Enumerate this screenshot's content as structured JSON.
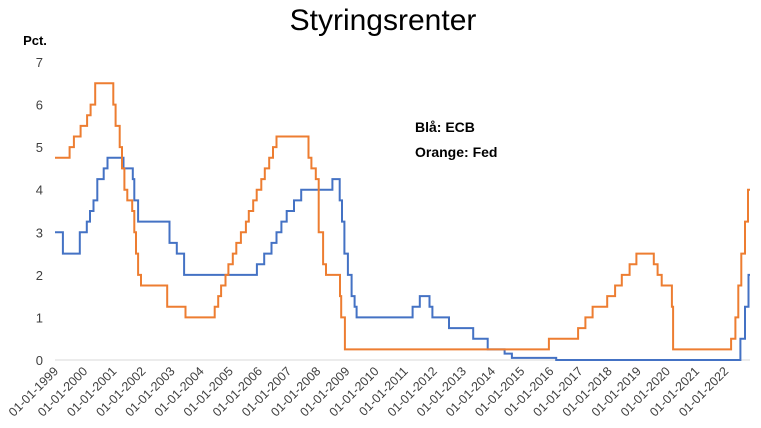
{
  "chart_data": {
    "type": "line",
    "title": "Styringsrenter",
    "ylabel": "Pct.",
    "xlabel": "",
    "ylim": [
      0,
      7
    ],
    "yticks": [
      0,
      1,
      2,
      3,
      4,
      5,
      6,
      7
    ],
    "grid": false,
    "xlim": [
      1999.0,
      2022.85
    ],
    "categories": [
      "01-01-1999",
      "01-01-2000",
      "01-01-2001",
      "01-01-2002",
      "01-01-2003",
      "01-01-2004",
      "01-01-2005",
      "01-01-2006",
      "01-01-2007",
      "01-01-2008",
      "01-01-2009",
      "01-01-2010",
      "01-01-2011",
      "01-01-2012",
      "01-01-2013",
      "01-01-2014",
      "01-01-2015",
      "01-01-2016",
      "01-01-2017",
      "01-01-2018",
      "01-01-2019",
      "01-01-2020",
      "01-01-2021",
      "01-01-2022"
    ],
    "legend": [
      "Blå: ECB",
      "Orange: Fed"
    ],
    "legend_position": "top-center",
    "series": [
      {
        "name": "ECB",
        "color": "#4472c4",
        "points": [
          [
            1999.0,
            3.0
          ],
          [
            1999.27,
            3.0
          ],
          [
            1999.27,
            2.5
          ],
          [
            1999.85,
            2.5
          ],
          [
            1999.85,
            3.0
          ],
          [
            2000.09,
            3.0
          ],
          [
            2000.09,
            3.25
          ],
          [
            2000.2,
            3.25
          ],
          [
            2000.2,
            3.5
          ],
          [
            2000.32,
            3.5
          ],
          [
            2000.32,
            3.75
          ],
          [
            2000.45,
            3.75
          ],
          [
            2000.45,
            4.25
          ],
          [
            2000.67,
            4.25
          ],
          [
            2000.67,
            4.5
          ],
          [
            2000.8,
            4.5
          ],
          [
            2000.8,
            4.75
          ],
          [
            2001.35,
            4.75
          ],
          [
            2001.35,
            4.5
          ],
          [
            2001.67,
            4.5
          ],
          [
            2001.67,
            4.25
          ],
          [
            2001.72,
            4.25
          ],
          [
            2001.72,
            3.75
          ],
          [
            2001.85,
            3.75
          ],
          [
            2001.85,
            3.25
          ],
          [
            2002.93,
            3.25
          ],
          [
            2002.93,
            2.75
          ],
          [
            2003.18,
            2.75
          ],
          [
            2003.18,
            2.5
          ],
          [
            2003.43,
            2.5
          ],
          [
            2003.43,
            2.0
          ],
          [
            2005.93,
            2.0
          ],
          [
            2005.93,
            2.25
          ],
          [
            2006.18,
            2.25
          ],
          [
            2006.18,
            2.5
          ],
          [
            2006.43,
            2.5
          ],
          [
            2006.43,
            2.75
          ],
          [
            2006.6,
            2.75
          ],
          [
            2006.6,
            3.0
          ],
          [
            2006.77,
            3.0
          ],
          [
            2006.77,
            3.25
          ],
          [
            2006.95,
            3.25
          ],
          [
            2006.95,
            3.5
          ],
          [
            2007.2,
            3.5
          ],
          [
            2007.2,
            3.75
          ],
          [
            2007.45,
            3.75
          ],
          [
            2007.45,
            4.0
          ],
          [
            2008.52,
            4.0
          ],
          [
            2008.52,
            4.25
          ],
          [
            2008.77,
            4.25
          ],
          [
            2008.77,
            3.75
          ],
          [
            2008.85,
            3.75
          ],
          [
            2008.85,
            3.25
          ],
          [
            2008.93,
            3.25
          ],
          [
            2008.93,
            2.5
          ],
          [
            2009.05,
            2.5
          ],
          [
            2009.05,
            2.0
          ],
          [
            2009.18,
            2.0
          ],
          [
            2009.18,
            1.5
          ],
          [
            2009.28,
            1.5
          ],
          [
            2009.28,
            1.25
          ],
          [
            2009.35,
            1.25
          ],
          [
            2009.35,
            1.0
          ],
          [
            2011.27,
            1.0
          ],
          [
            2011.27,
            1.25
          ],
          [
            2011.52,
            1.25
          ],
          [
            2011.52,
            1.5
          ],
          [
            2011.85,
            1.5
          ],
          [
            2011.85,
            1.25
          ],
          [
            2011.95,
            1.25
          ],
          [
            2011.95,
            1.0
          ],
          [
            2012.52,
            1.0
          ],
          [
            2012.52,
            0.75
          ],
          [
            2013.35,
            0.75
          ],
          [
            2013.35,
            0.5
          ],
          [
            2013.85,
            0.5
          ],
          [
            2013.85,
            0.25
          ],
          [
            2014.43,
            0.25
          ],
          [
            2014.43,
            0.15
          ],
          [
            2014.68,
            0.15
          ],
          [
            2014.68,
            0.05
          ],
          [
            2016.2,
            0.05
          ],
          [
            2016.2,
            0.0
          ],
          [
            2022.52,
            0.0
          ],
          [
            2022.52,
            0.5
          ],
          [
            2022.68,
            0.5
          ],
          [
            2022.68,
            1.25
          ],
          [
            2022.8,
            1.25
          ],
          [
            2022.8,
            2.0
          ],
          [
            2022.85,
            2.0
          ]
        ]
      },
      {
        "name": "Fed",
        "color": "#ed7d31",
        "points": [
          [
            1999.0,
            4.75
          ],
          [
            1999.5,
            4.75
          ],
          [
            1999.5,
            5.0
          ],
          [
            1999.65,
            5.0
          ],
          [
            1999.65,
            5.25
          ],
          [
            1999.88,
            5.25
          ],
          [
            1999.88,
            5.5
          ],
          [
            2000.1,
            5.5
          ],
          [
            2000.1,
            5.75
          ],
          [
            2000.22,
            5.75
          ],
          [
            2000.22,
            6.0
          ],
          [
            2000.38,
            6.0
          ],
          [
            2000.38,
            6.5
          ],
          [
            2001.0,
            6.5
          ],
          [
            2001.0,
            6.0
          ],
          [
            2001.08,
            6.0
          ],
          [
            2001.08,
            5.5
          ],
          [
            2001.22,
            5.5
          ],
          [
            2001.22,
            5.0
          ],
          [
            2001.3,
            5.0
          ],
          [
            2001.3,
            4.5
          ],
          [
            2001.38,
            4.5
          ],
          [
            2001.38,
            4.0
          ],
          [
            2001.48,
            4.0
          ],
          [
            2001.48,
            3.75
          ],
          [
            2001.65,
            3.75
          ],
          [
            2001.65,
            3.5
          ],
          [
            2001.72,
            3.5
          ],
          [
            2001.72,
            3.0
          ],
          [
            2001.78,
            3.0
          ],
          [
            2001.78,
            2.5
          ],
          [
            2001.85,
            2.5
          ],
          [
            2001.85,
            2.0
          ],
          [
            2001.95,
            2.0
          ],
          [
            2001.95,
            1.75
          ],
          [
            2002.85,
            1.75
          ],
          [
            2002.85,
            1.25
          ],
          [
            2003.48,
            1.25
          ],
          [
            2003.48,
            1.0
          ],
          [
            2004.48,
            1.0
          ],
          [
            2004.48,
            1.25
          ],
          [
            2004.6,
            1.25
          ],
          [
            2004.6,
            1.5
          ],
          [
            2004.7,
            1.5
          ],
          [
            2004.7,
            1.75
          ],
          [
            2004.85,
            1.75
          ],
          [
            2004.85,
            2.0
          ],
          [
            2004.95,
            2.0
          ],
          [
            2004.95,
            2.25
          ],
          [
            2005.1,
            2.25
          ],
          [
            2005.1,
            2.5
          ],
          [
            2005.22,
            2.5
          ],
          [
            2005.22,
            2.75
          ],
          [
            2005.38,
            2.75
          ],
          [
            2005.38,
            3.0
          ],
          [
            2005.55,
            3.0
          ],
          [
            2005.55,
            3.25
          ],
          [
            2005.65,
            3.25
          ],
          [
            2005.65,
            3.5
          ],
          [
            2005.8,
            3.5
          ],
          [
            2005.8,
            3.75
          ],
          [
            2005.92,
            3.75
          ],
          [
            2005.92,
            4.0
          ],
          [
            2006.08,
            4.0
          ],
          [
            2006.08,
            4.25
          ],
          [
            2006.2,
            4.25
          ],
          [
            2006.2,
            4.5
          ],
          [
            2006.35,
            4.5
          ],
          [
            2006.35,
            4.75
          ],
          [
            2006.48,
            4.75
          ],
          [
            2006.48,
            5.0
          ],
          [
            2006.6,
            5.0
          ],
          [
            2006.6,
            5.25
          ],
          [
            2007.7,
            5.25
          ],
          [
            2007.7,
            4.75
          ],
          [
            2007.8,
            4.75
          ],
          [
            2007.8,
            4.5
          ],
          [
            2007.95,
            4.5
          ],
          [
            2007.95,
            4.25
          ],
          [
            2008.05,
            4.25
          ],
          [
            2008.05,
            3.0
          ],
          [
            2008.2,
            3.0
          ],
          [
            2008.2,
            2.25
          ],
          [
            2008.3,
            2.25
          ],
          [
            2008.3,
            2.0
          ],
          [
            2008.78,
            2.0
          ],
          [
            2008.78,
            1.5
          ],
          [
            2008.82,
            1.5
          ],
          [
            2008.82,
            1.0
          ],
          [
            2008.95,
            1.0
          ],
          [
            2008.95,
            0.25
          ],
          [
            2015.95,
            0.25
          ],
          [
            2015.95,
            0.5
          ],
          [
            2016.95,
            0.5
          ],
          [
            2016.95,
            0.75
          ],
          [
            2017.2,
            0.75
          ],
          [
            2017.2,
            1.0
          ],
          [
            2017.45,
            1.0
          ],
          [
            2017.45,
            1.25
          ],
          [
            2017.95,
            1.25
          ],
          [
            2017.95,
            1.5
          ],
          [
            2018.22,
            1.5
          ],
          [
            2018.22,
            1.75
          ],
          [
            2018.45,
            1.75
          ],
          [
            2018.45,
            2.0
          ],
          [
            2018.72,
            2.0
          ],
          [
            2018.72,
            2.25
          ],
          [
            2018.95,
            2.25
          ],
          [
            2018.95,
            2.5
          ],
          [
            2019.55,
            2.5
          ],
          [
            2019.55,
            2.25
          ],
          [
            2019.68,
            2.25
          ],
          [
            2019.68,
            2.0
          ],
          [
            2019.82,
            2.0
          ],
          [
            2019.82,
            1.75
          ],
          [
            2020.17,
            1.75
          ],
          [
            2020.17,
            1.25
          ],
          [
            2020.21,
            1.25
          ],
          [
            2020.21,
            0.25
          ],
          [
            2022.2,
            0.25
          ],
          [
            2022.2,
            0.5
          ],
          [
            2022.35,
            0.5
          ],
          [
            2022.35,
            1.0
          ],
          [
            2022.45,
            1.0
          ],
          [
            2022.45,
            1.75
          ],
          [
            2022.55,
            1.75
          ],
          [
            2022.55,
            2.5
          ],
          [
            2022.68,
            2.5
          ],
          [
            2022.68,
            3.25
          ],
          [
            2022.78,
            3.25
          ],
          [
            2022.78,
            4.0
          ],
          [
            2022.85,
            4.0
          ]
        ]
      }
    ]
  }
}
